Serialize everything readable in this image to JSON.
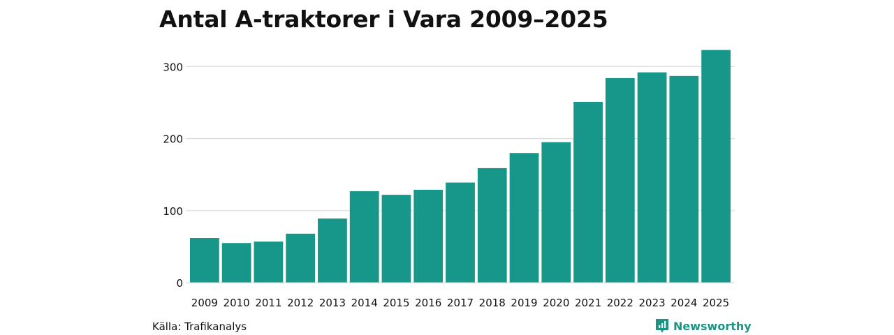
{
  "title": "Antal A-traktorer i Vara 2009–2025",
  "source": "Källa: Trafikanalys",
  "brand": {
    "name": "Newsworthy",
    "icon": "newsworthy-logo-icon",
    "color": "#1a9585"
  },
  "chart_data": {
    "type": "bar",
    "title": "Antal A-traktorer i Vara 2009–2025",
    "categories": [
      "2009",
      "2010",
      "2011",
      "2012",
      "2013",
      "2014",
      "2015",
      "2016",
      "2017",
      "2018",
      "2019",
      "2020",
      "2021",
      "2022",
      "2023",
      "2024",
      "2025"
    ],
    "values": [
      62,
      55,
      57,
      68,
      89,
      127,
      122,
      129,
      139,
      159,
      180,
      195,
      251,
      284,
      292,
      287,
      323
    ],
    "yticks": [
      0,
      100,
      200,
      300
    ],
    "ylim": [
      0,
      330
    ],
    "xlabel": "",
    "ylabel": "",
    "bar_color": "#16978a",
    "grid": true
  }
}
